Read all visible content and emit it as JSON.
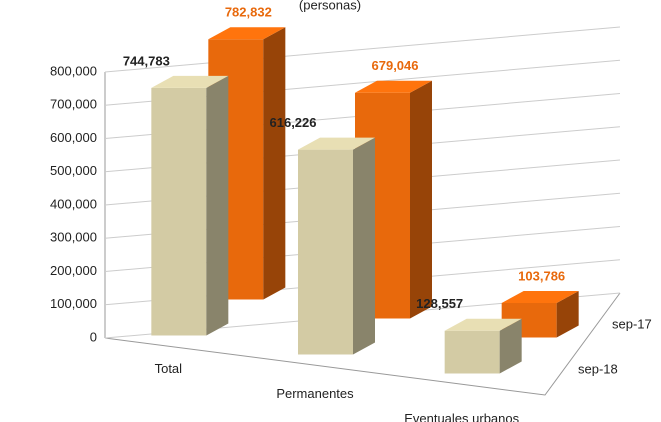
{
  "chart_data": {
    "type": "bar3d",
    "subtitle": "(personas)",
    "categories": [
      "Total",
      "Permanentes",
      "Eventuales urbanos"
    ],
    "series": [
      {
        "name": "sep-17",
        "color": "#e8690c",
        "values": [
          782832,
          679046,
          103786
        ],
        "value_labels": [
          "782,832",
          "679,046",
          "103,786"
        ]
      },
      {
        "name": "sep-18",
        "color": "#d3cba4",
        "values": [
          744783,
          616226,
          128557
        ],
        "value_labels": [
          "744,783",
          "616,226",
          "128,557"
        ]
      }
    ],
    "ylim": [
      0,
      800000
    ],
    "yticks": [
      0,
      {
        "value": 100000,
        "label": "100,000"
      },
      {
        "value": 200000,
        "label": "200,000"
      },
      {
        "value": 300000,
        "label": "300,000"
      },
      {
        "value": 400000,
        "label": "400,000"
      },
      {
        "value": 500000,
        "label": "500,000"
      },
      {
        "value": 600000,
        "label": "600,000"
      },
      {
        "value": 700000,
        "label": "700,000"
      },
      {
        "value": 800000,
        "label": "800,000"
      }
    ],
    "grid": true
  }
}
